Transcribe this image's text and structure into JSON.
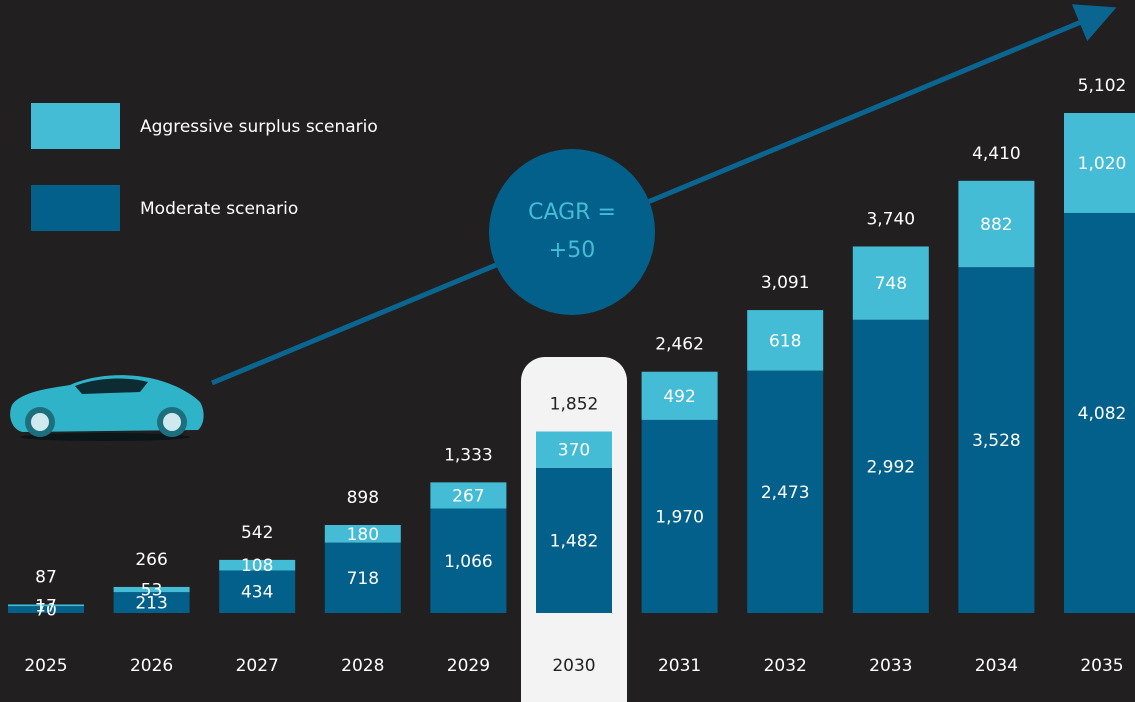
{
  "chart_data": {
    "type": "stacked-bar",
    "categories": [
      "2025",
      "2026",
      "2027",
      "2028",
      "2029",
      "2030",
      "2031",
      "2032",
      "2033",
      "2034",
      "2035"
    ],
    "series": [
      {
        "name": "Moderate scenario",
        "color": "#03608a",
        "values": [
          70,
          213,
          434,
          718,
          1066,
          1482,
          1970,
          2473,
          2992,
          3528,
          4082
        ],
        "value_labels": [
          "70",
          "213",
          "434",
          "718",
          "1,066",
          "1,482",
          "1,970",
          "2,473",
          "2,992",
          "3,528",
          "4,082"
        ]
      },
      {
        "name": "Aggressive surplus scenario",
        "color": "#45bcd6",
        "values": [
          17,
          53,
          108,
          180,
          267,
          370,
          492,
          618,
          748,
          882,
          1020
        ],
        "value_labels": [
          "17",
          "53",
          "108",
          "180",
          "267",
          "370",
          "492",
          "618",
          "748",
          "882",
          "1,020"
        ]
      }
    ],
    "totals": {
      "values": [
        87,
        266,
        542,
        898,
        1333,
        1852,
        2462,
        3091,
        3740,
        4410,
        5102
      ],
      "value_labels": [
        "87",
        "266",
        "542",
        "898",
        "1,333",
        "1,852",
        "2,462",
        "3,091",
        "3,740",
        "4,410",
        "5,102"
      ]
    },
    "annotation": [
      "CAGR =",
      "+50"
    ],
    "highlight": "2030"
  }
}
